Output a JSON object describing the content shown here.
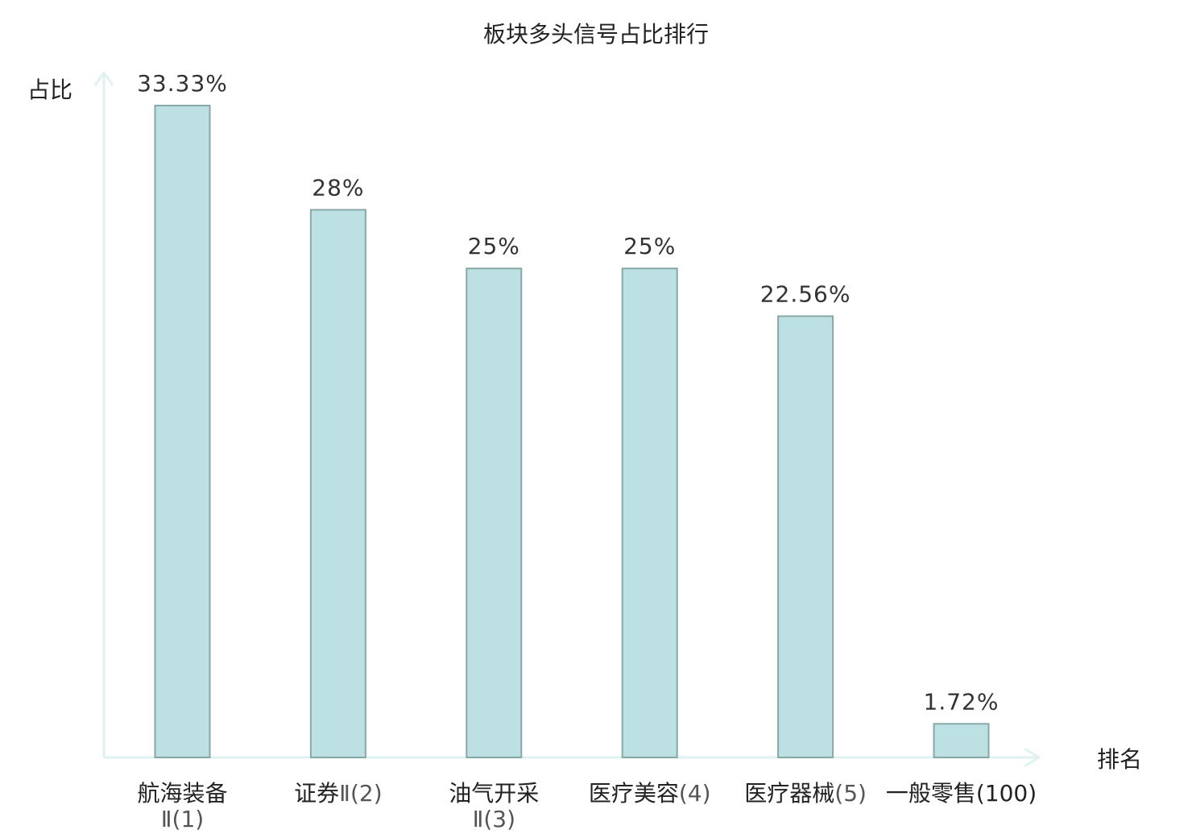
{
  "chart_data": {
    "type": "bar",
    "title": "板块多头信号占比排行",
    "ylabel": "占比",
    "xlabel": "排名",
    "ylim": [
      0,
      35
    ],
    "grid": false,
    "categories": [
      {
        "name": "航海装备",
        "rank": "Ⅱ(1)",
        "wrap": true,
        "highlight": false
      },
      {
        "name": "证券",
        "rank": "Ⅱ(2)",
        "wrap": false,
        "highlight": false
      },
      {
        "name": "油气开采",
        "rank": "Ⅱ(3)",
        "wrap": true,
        "highlight": false
      },
      {
        "name": "医疗美容",
        "rank": "(4)",
        "wrap": false,
        "highlight": false
      },
      {
        "name": "医疗器械",
        "rank": "(5)",
        "wrap": false,
        "highlight": false
      },
      {
        "name": "一般零售",
        "rank": "(100)",
        "wrap": false,
        "highlight": true
      }
    ],
    "values": [
      33.33,
      28,
      25,
      25,
      22.56,
      1.72
    ],
    "value_labels": [
      "33.33%",
      "28%",
      "25%",
      "25%",
      "22.56%",
      "1.72%"
    ],
    "colors": {
      "bar_fill": "#bde0e3",
      "bar_stroke": "#88a8a8",
      "axis": "#e0f2ef",
      "highlight_text": "#dd1111"
    }
  }
}
